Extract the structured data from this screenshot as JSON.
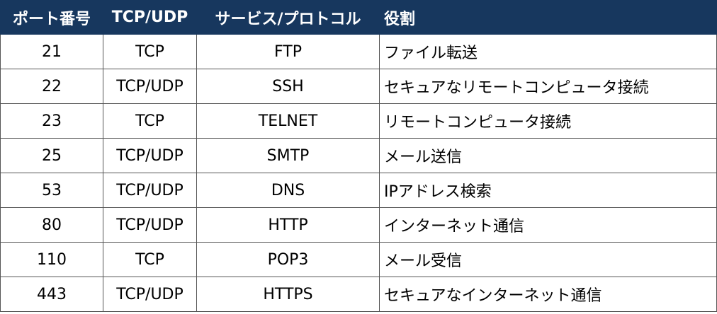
{
  "table": {
    "header": [
      "ポート番号",
      "TCP/UDP",
      "サービス/プロトコル",
      "役割"
    ],
    "rows": [
      [
        "21",
        "TCP",
        "FTP",
        "ファイル転送"
      ],
      [
        "22",
        "TCP/UDP",
        "SSH",
        "セキュアなリモートコンピュータ接続"
      ],
      [
        "23",
        "TCP",
        "TELNET",
        "リモートコンピュータ接続"
      ],
      [
        "25",
        "TCP/UDP",
        "SMTP",
        "メール送信"
      ],
      [
        "53",
        "TCP/UDP",
        "DNS",
        "IPアドレス検索"
      ],
      [
        "80",
        "TCP/UDP",
        "HTTP",
        "インターネット通信"
      ],
      [
        "110",
        "TCP",
        "POP3",
        "メール受信"
      ],
      [
        "443",
        "TCP/UDP",
        "HTTPS",
        "セキュアなインターネット通信"
      ]
    ]
  }
}
